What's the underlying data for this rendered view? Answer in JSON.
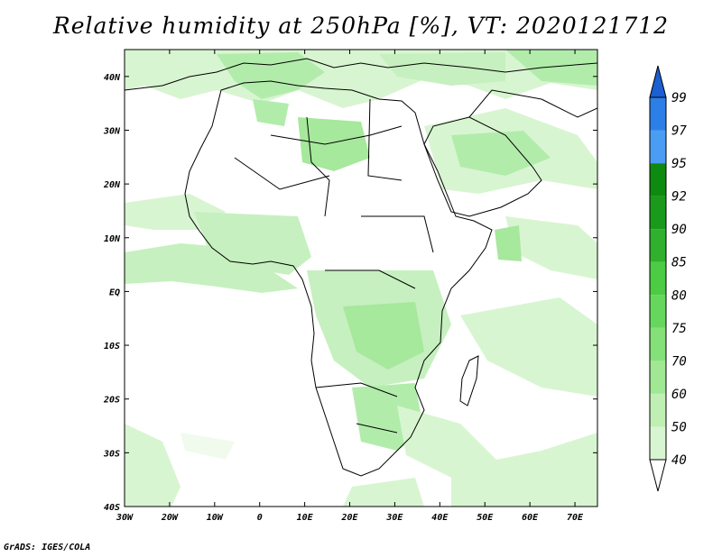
{
  "title": "Relative humidity at 250hPa [%], VT: 2020121712",
  "credit": "GrADS: IGES/COLA",
  "map": {
    "lon_range": [
      -30,
      75
    ],
    "lat_range": [
      -40,
      45
    ],
    "lon_ticks": [
      {
        "value": -30,
        "label": "30W"
      },
      {
        "value": -20,
        "label": "20W"
      },
      {
        "value": -10,
        "label": "10W"
      },
      {
        "value": 0,
        "label": "0"
      },
      {
        "value": 10,
        "label": "10E"
      },
      {
        "value": 20,
        "label": "20E"
      },
      {
        "value": 30,
        "label": "30E"
      },
      {
        "value": 40,
        "label": "40E"
      },
      {
        "value": 50,
        "label": "50E"
      },
      {
        "value": 60,
        "label": "60E"
      },
      {
        "value": 70,
        "label": "70E"
      }
    ],
    "lat_ticks": [
      {
        "value": 40,
        "label": "40N"
      },
      {
        "value": 30,
        "label": "30N"
      },
      {
        "value": 20,
        "label": "20N"
      },
      {
        "value": 10,
        "label": "10N"
      },
      {
        "value": 0,
        "label": "EQ"
      },
      {
        "value": -10,
        "label": "10S"
      },
      {
        "value": -20,
        "label": "20S"
      },
      {
        "value": -30,
        "label": "30S"
      },
      {
        "value": -40,
        "label": "40S"
      }
    ]
  },
  "colorbar": {
    "levels": [
      {
        "label": "40",
        "color": "#f0fbee"
      },
      {
        "label": "50",
        "color": "#d8f5d1"
      },
      {
        "label": "60",
        "color": "#c0efb4"
      },
      {
        "label": "70",
        "color": "#a0e894"
      },
      {
        "label": "75",
        "color": "#84e078"
      },
      {
        "label": "80",
        "color": "#66d75c"
      },
      {
        "label": "85",
        "color": "#4ccb44"
      },
      {
        "label": "90",
        "color": "#30b02c"
      },
      {
        "label": "92",
        "color": "#1a9a1a"
      },
      {
        "label": "95",
        "color": "#0f8a10"
      },
      {
        "label": "97",
        "color": "#4a9df2"
      },
      {
        "label": "99",
        "color": "#2c7fe6"
      }
    ],
    "top_color": "#1b5fd0",
    "bottom_color": "#ffffff"
  },
  "colors": {
    "light_green": "#d8f5d1",
    "mid_green": "#b2ecab",
    "green": "#8fe087",
    "coast": "#000000"
  }
}
